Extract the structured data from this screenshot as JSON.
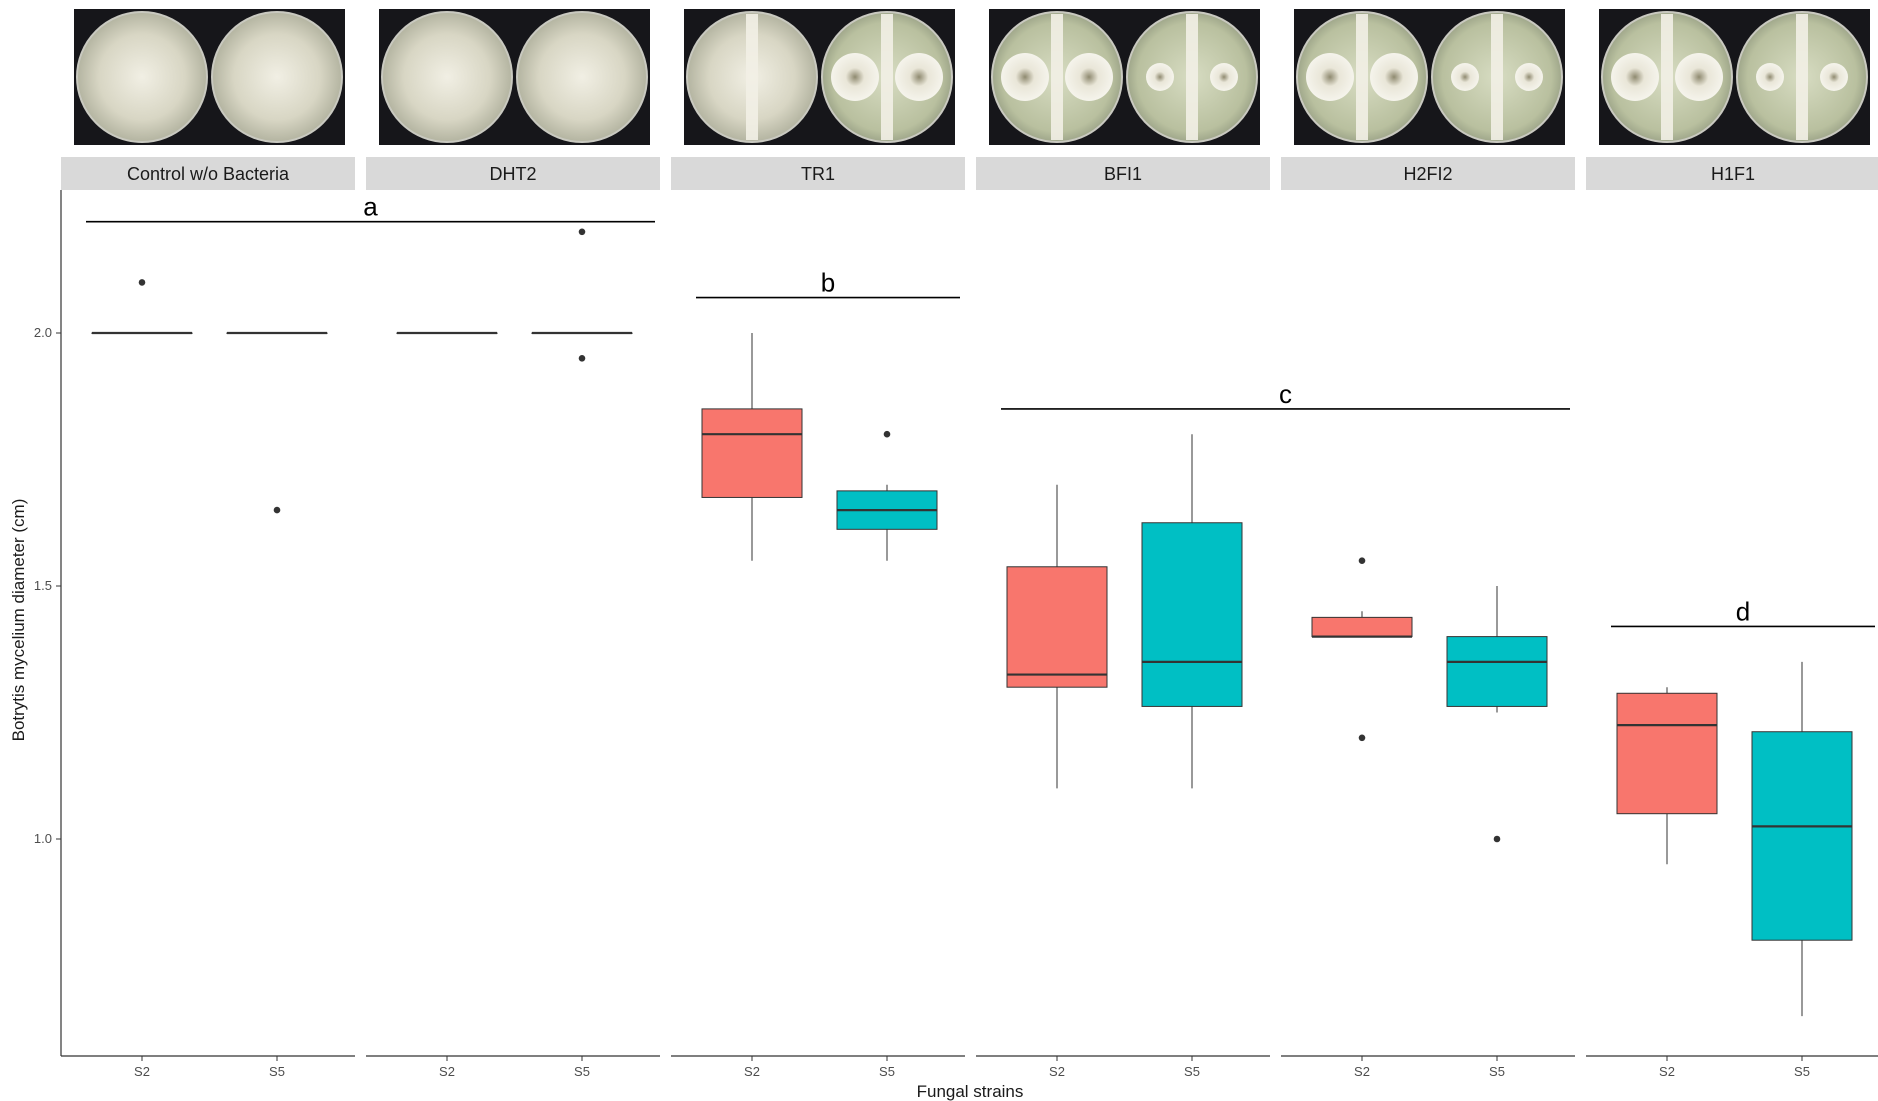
{
  "chart_data": {
    "type": "boxplot",
    "title": "",
    "xlabel": "Fungal strains",
    "ylabel": "Botrytis mycelium diameter (cm)",
    "y_ticks": [
      "1.0",
      "1.5",
      "2.0"
    ],
    "y_tick_values": [
      1.0,
      1.5,
      2.0
    ],
    "ylim": [
      0.6,
      2.28
    ],
    "grid": false,
    "legend": "none",
    "colors": {
      "S2": "#F8766D",
      "S5": "#00BFC4",
      "strip_bg": "#D9D9D9",
      "line": "#333333"
    },
    "facets": [
      {
        "label": "Control w/o Bacteria",
        "boxes": [
          {
            "strain": "S2",
            "min": 2.0,
            "q1": 2.0,
            "median": 2.0,
            "q3": 2.0,
            "max": 2.0,
            "outliers": [
              2.1
            ]
          },
          {
            "strain": "S5",
            "min": 2.0,
            "q1": 2.0,
            "median": 2.0,
            "q3": 2.0,
            "max": 2.0,
            "outliers": [
              1.65
            ]
          }
        ]
      },
      {
        "label": "DHT2",
        "boxes": [
          {
            "strain": "S2",
            "min": 2.0,
            "q1": 2.0,
            "median": 2.0,
            "q3": 2.0,
            "max": 2.0,
            "outliers": []
          },
          {
            "strain": "S5",
            "min": 2.0,
            "q1": 2.0,
            "median": 2.0,
            "q3": 2.0,
            "max": 2.0,
            "outliers": [
              2.2,
              1.95
            ]
          }
        ]
      },
      {
        "label": "TR1",
        "boxes": [
          {
            "strain": "S2",
            "min": 1.55,
            "q1": 1.675,
            "median": 1.8,
            "q3": 1.85,
            "max": 2.0,
            "outliers": []
          },
          {
            "strain": "S5",
            "min": 1.55,
            "q1": 1.612,
            "median": 1.65,
            "q3": 1.688,
            "max": 1.7,
            "outliers": [
              1.8
            ]
          }
        ]
      },
      {
        "label": "BFI1",
        "boxes": [
          {
            "strain": "S2",
            "min": 1.1,
            "q1": 1.3,
            "median": 1.325,
            "q3": 1.538,
            "max": 1.7,
            "outliers": []
          },
          {
            "strain": "S5",
            "min": 1.1,
            "q1": 1.262,
            "median": 1.35,
            "q3": 1.625,
            "max": 1.8,
            "outliers": []
          }
        ]
      },
      {
        "label": "H2FI2",
        "boxes": [
          {
            "strain": "S2",
            "min": 1.4,
            "q1": 1.4,
            "median": 1.4,
            "q3": 1.438,
            "max": 1.45,
            "outliers": [
              1.55,
              1.2
            ]
          },
          {
            "strain": "S5",
            "min": 1.25,
            "q1": 1.262,
            "median": 1.35,
            "q3": 1.4,
            "max": 1.5,
            "outliers": [
              1.0
            ]
          }
        ]
      },
      {
        "label": "H1F1",
        "boxes": [
          {
            "strain": "S2",
            "min": 0.95,
            "q1": 1.05,
            "median": 1.225,
            "q3": 1.288,
            "max": 1.3,
            "outliers": []
          },
          {
            "strain": "S5",
            "min": 0.65,
            "q1": 0.8,
            "median": 1.025,
            "q3": 1.212,
            "max": 1.35,
            "outliers": []
          }
        ]
      }
    ],
    "significance_groups": [
      {
        "label": "a",
        "y": 2.22,
        "from_facet": 0,
        "to_facet": 1
      },
      {
        "label": "b",
        "y": 2.07,
        "from_facet": 2,
        "to_facet": 2
      },
      {
        "label": "c",
        "y": 1.85,
        "from_facet": 3,
        "to_facet": 4
      },
      {
        "label": "d",
        "y": 1.42,
        "from_facet": 5,
        "to_facet": 5
      }
    ]
  }
}
